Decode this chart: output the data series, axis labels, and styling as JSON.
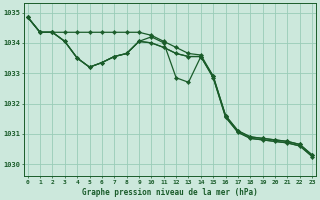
{
  "title": "Graphe pression niveau de la mer (hPa)",
  "bg_color": "#cce8dc",
  "grid_color": "#99ccb8",
  "line_color": "#1a5c2a",
  "x_labels": [
    "0",
    "1",
    "2",
    "3",
    "4",
    "5",
    "6",
    "7",
    "8",
    "9",
    "10",
    "11",
    "12",
    "13",
    "14",
    "15",
    "16",
    "17",
    "18",
    "19",
    "20",
    "21",
    "22",
    "23"
  ],
  "ylim": [
    1029.6,
    1035.3
  ],
  "yticks": [
    1030,
    1031,
    1032,
    1033,
    1034,
    1035
  ],
  "s1": [
    1034.85,
    1034.35,
    1034.35,
    1034.35,
    1034.35,
    1034.35,
    1034.35,
    1034.35,
    1034.35,
    1034.35,
    1034.25,
    1034.05,
    1033.85,
    1033.65,
    1033.6,
    1032.9,
    1031.6,
    1031.1,
    1030.9,
    1030.85,
    1030.8,
    1030.75,
    1030.65,
    1030.3
  ],
  "s2": [
    1034.85,
    1034.35,
    1034.35,
    1034.05,
    1033.5,
    1033.2,
    1033.35,
    1033.55,
    1033.65,
    1034.05,
    1034.0,
    1033.85,
    1033.65,
    1033.55,
    1033.55,
    1032.9,
    1031.6,
    1031.1,
    1030.9,
    1030.85,
    1030.8,
    1030.75,
    1030.65,
    1030.3
  ],
  "s3": [
    1034.85,
    1034.35,
    1034.35,
    1034.05,
    1033.5,
    1033.2,
    1033.35,
    1033.55,
    1033.65,
    1034.05,
    1034.0,
    1033.85,
    1033.65,
    1033.55,
    1033.55,
    1032.85,
    1031.55,
    1031.05,
    1030.85,
    1030.8,
    1030.75,
    1030.7,
    1030.6,
    1030.25
  ],
  "s4": [
    1034.85,
    1034.35,
    1034.35,
    1034.05,
    1033.5,
    1033.2,
    1033.35,
    1033.55,
    1033.65,
    1034.05,
    1034.2,
    1034.0,
    1032.85,
    1032.7,
    1033.55,
    1032.85,
    1031.55,
    1031.05,
    1030.85,
    1030.8,
    1030.75,
    1030.7,
    1030.6,
    1030.25
  ]
}
